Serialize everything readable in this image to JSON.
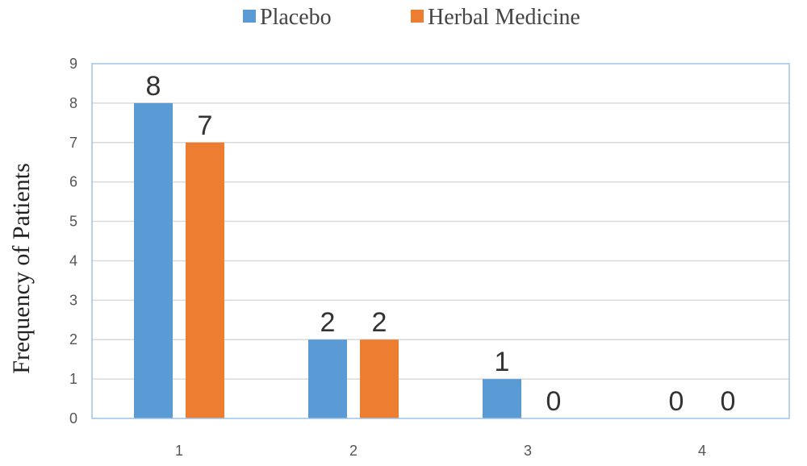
{
  "chart_data": {
    "type": "bar",
    "categories": [
      "1",
      "2",
      "3",
      "4"
    ],
    "series": [
      {
        "name": "Placebo",
        "values": [
          8,
          2,
          1,
          0
        ],
        "color": "#5b9bd5"
      },
      {
        "name": "Herbal Medicine",
        "values": [
          7,
          2,
          0,
          0
        ],
        "color": "#ed7d31"
      }
    ],
    "xlabel": "",
    "ylabel": "Frequency of  Patients",
    "ylim": [
      0,
      9
    ],
    "yticks": [
      "0",
      "1",
      "2",
      "3",
      "4",
      "5",
      "6",
      "7",
      "8",
      "9"
    ],
    "grid": true,
    "legend_position": "top-center",
    "data_labels": true,
    "plot_border_color": "#9dc3e6",
    "gridline_color": "#d9d9d9"
  }
}
